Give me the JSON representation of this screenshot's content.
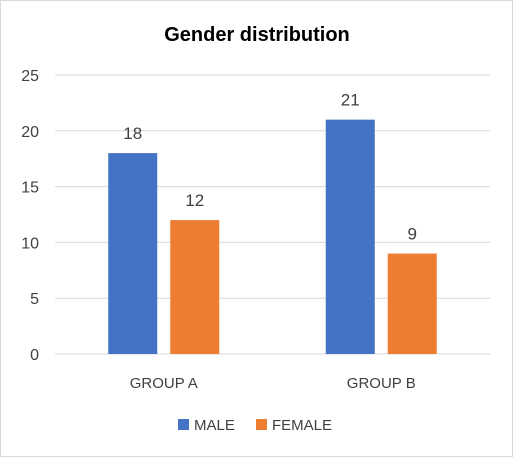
{
  "chart_data": {
    "type": "bar",
    "title": "Gender distribution",
    "categories": [
      "GROUP A",
      "GROUP B"
    ],
    "series": [
      {
        "name": "MALE",
        "values": [
          18,
          21
        ],
        "color": "#4472c4"
      },
      {
        "name": "FEMALE",
        "values": [
          12,
          9
        ],
        "color": "#ed7d31"
      }
    ],
    "ylim": [
      0,
      25
    ],
    "yticks": [
      0,
      5,
      10,
      15,
      20,
      25
    ],
    "grid": true,
    "legend": "bottom",
    "data_labels": true,
    "gridline_color": "#d9d9d9"
  }
}
